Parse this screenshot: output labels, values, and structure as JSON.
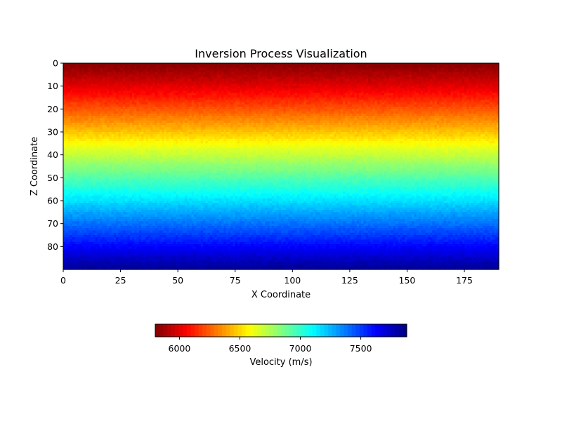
{
  "chart_data": {
    "type": "heatmap",
    "title": "Inversion Process Visualization",
    "xlabel": "X Coordinate",
    "ylabel": "Z Coordinate",
    "xlim": [
      0,
      190
    ],
    "ylim": [
      90,
      0
    ],
    "x_ticks": [
      0,
      25,
      50,
      75,
      100,
      125,
      150,
      175
    ],
    "y_ticks": [
      0,
      10,
      20,
      30,
      40,
      50,
      60,
      70,
      80
    ],
    "grid_shape": {
      "nz": 90,
      "nx": 190
    },
    "velocity_profile": {
      "z": [
        0,
        10,
        20,
        30,
        40,
        50,
        60,
        70,
        80,
        89
      ],
      "velocity": [
        5800,
        6000,
        6230,
        6460,
        6700,
        6930,
        7160,
        7390,
        7620,
        7820
      ]
    },
    "colormap": "jet_r",
    "colorbar": {
      "label": "Velocity (m/s)",
      "vmin": 5800,
      "vmax": 7880,
      "ticks": [
        6000,
        6500,
        7000,
        7500
      ],
      "orientation": "horizontal",
      "placement": "bottom"
    },
    "grid": false
  }
}
